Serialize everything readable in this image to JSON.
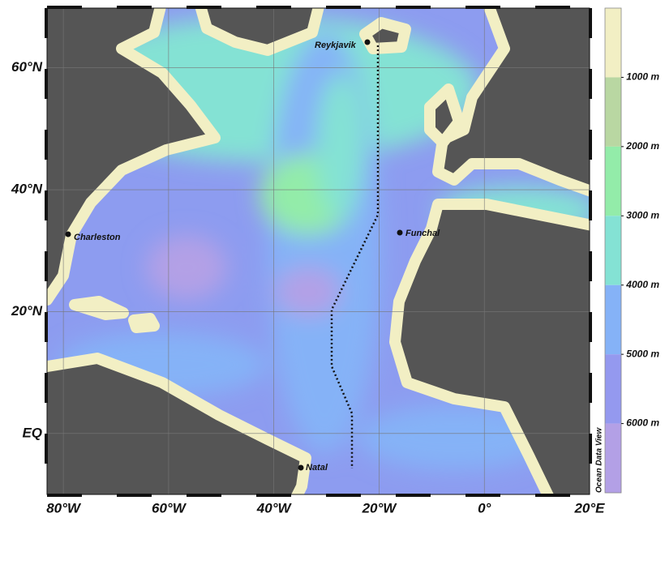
{
  "map": {
    "xlim": [
      -83.1,
      20
    ],
    "ylim": [
      -10,
      69.8
    ],
    "xticks": [
      {
        "value": -80,
        "label": "80°W"
      },
      {
        "value": -60,
        "label": "60°W"
      },
      {
        "value": -40,
        "label": "40°W"
      },
      {
        "value": -20,
        "label": "20°W"
      },
      {
        "value": 0,
        "label": "0°"
      },
      {
        "value": 20,
        "label": "20°E"
      }
    ],
    "yticks": [
      {
        "value": 60,
        "label": "60°N"
      },
      {
        "value": 40,
        "label": "40°N"
      },
      {
        "value": 20,
        "label": "20°N"
      },
      {
        "value": 0,
        "label": "EQ"
      }
    ],
    "cities": [
      "Reykjavik",
      "Charleston",
      "Funchal",
      "Natal"
    ],
    "colorbar": {
      "lim": [
        0,
        7000
      ],
      "ticks": [
        {
          "value": 1000,
          "label": "1000 m"
        },
        {
          "value": 2000,
          "label": "2000 m"
        },
        {
          "value": 3000,
          "label": "3000 m"
        },
        {
          "value": 4000,
          "label": "4000 m"
        },
        {
          "value": 5000,
          "label": "5000 m"
        },
        {
          "value": 6000,
          "label": "6000 m"
        }
      ],
      "colors": [
        "#f2efc4",
        "#b9d7a2",
        "#93eca9",
        "#84e2d4",
        "#85b2f7",
        "#9499ef",
        "#b3a0e6"
      ]
    },
    "credit": "Ocean Data View"
  }
}
